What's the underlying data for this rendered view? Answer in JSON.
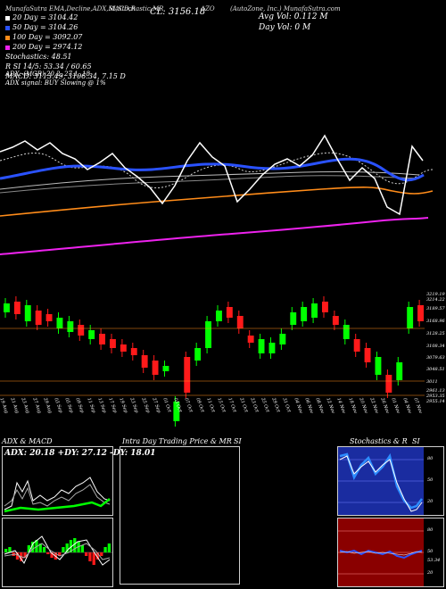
{
  "header": {
    "line1_left": "MunafaSutra EMA,Decline,ADX,MACD,R",
    "line1_mid": "SI,Stochastic,MR",
    "close_text": "CL: 3156.18",
    "line1_right": "(AutoZone, Inc.) MunafaSutra.com",
    "line1_right2": "AZO",
    "avg_vol": "Avg Vol: 0.112  M",
    "day_vol": "Day Vol: 0   M",
    "ema20": "20  Day = 3104.42",
    "ema50": "50  Day = 3104.26",
    "ema100": "100  Day = 3092.07",
    "ema200": "200  Day = 2974.12",
    "stochastics": "Stochastics: 48.51",
    "rsi": "R        SI 14/5: 53.34 / 60.65",
    "macd": "MACD: 3113.49, 3106.34, 7.15 D",
    "adx": "ADX:                                    (MGR) 20.2, 27.1, 18",
    "adx_signal": "ADX signal:                                    BUY Slowing @ 1%"
  },
  "price_axis": [
    "3219.19",
    "3214.22",
    "3189.57",
    "3168.96",
    "3128.25",
    "3108.34",
    "3079.63",
    "3048.51",
    "3011",
    "2961.13",
    "2953.35",
    "2955.14"
  ],
  "dates": [
    "19 Aug",
    "21 Aug",
    "23 Aug",
    "27 Aug",
    "29 Aug",
    "03 Sep",
    "05 Sep",
    "09 Sep",
    "11 Sep",
    "13 Sep",
    "17 Sep",
    "19 Sep",
    "23 Sep",
    "25 Sep",
    "27 Sep",
    "01 Oct",
    "03 Oct",
    "07 Oct",
    "09 Oct",
    "11 Oct",
    "15 Oct",
    "17 Oct",
    "21 Oct",
    "23 Oct",
    "25 Oct",
    "29 Oct",
    "31 Oct",
    "04 Nov",
    "06 Nov",
    "08 Nov",
    "12 Nov",
    "14 Nov",
    "18 Nov",
    "20 Nov",
    "22 Nov",
    "26 Nov",
    "01 Nov",
    "04 Nov",
    "07 Nov"
  ],
  "colors": {
    "up": "#00ff00",
    "down": "#ff1a1a",
    "ema20": "#2a52ff",
    "ema50": "#ff8c1a",
    "ema200": "#ee22ee",
    "price": "#ffffff"
  },
  "panels": {
    "adx_macd": {
      "title": "ADX  & MACD",
      "adx_line": "ADX: 20.18  +DY: 27.12  -DY: 18.01"
    },
    "intraday": {
      "title": "Intra  Day Trading Price  & MR",
      "suffix": "SI"
    },
    "stoch": {
      "title": "Stochastics & R",
      "suffix": "SI"
    }
  },
  "stoch_axis": [
    "80",
    "50",
    "20"
  ],
  "rsi_axis": [
    "80",
    "50",
    "20"
  ],
  "rsi_value": "53.34"
}
